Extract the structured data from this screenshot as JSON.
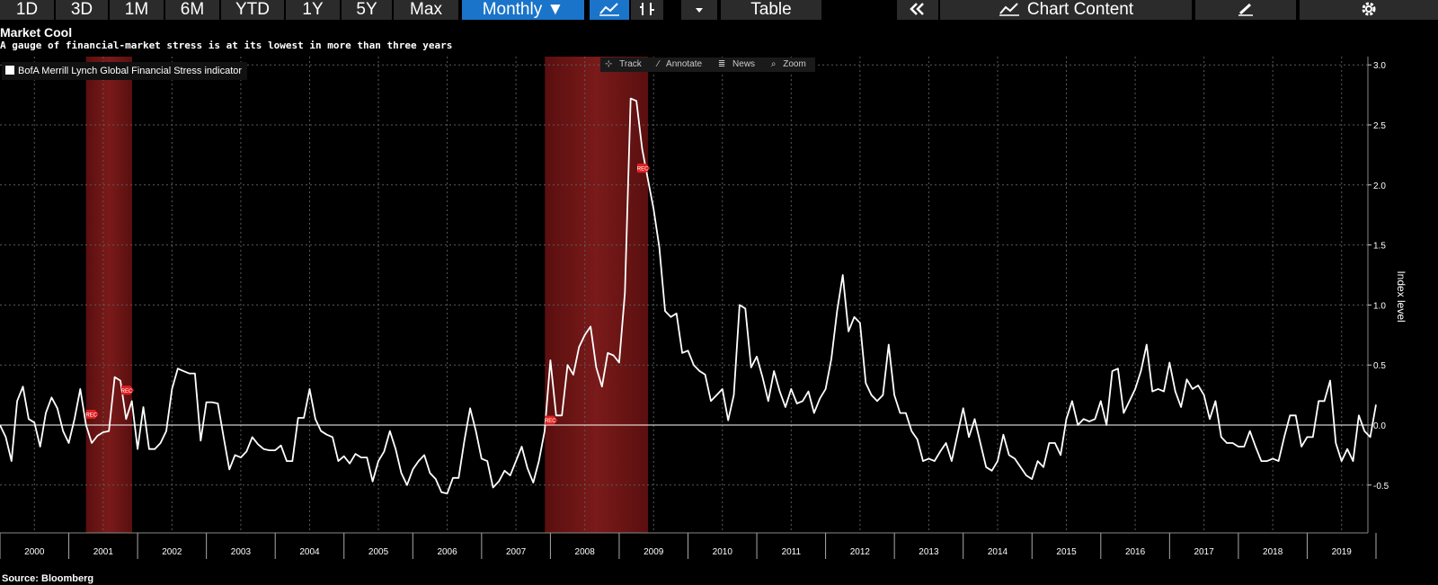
{
  "toolbar": {
    "ranges": [
      "1D",
      "3D",
      "1M",
      "6M",
      "YTD",
      "1Y",
      "5Y",
      "Max"
    ],
    "frequency": "Monthly ▼",
    "table": "Table",
    "collapse_icon": "double-chevron-left-icon",
    "chart_content": "Chart Content",
    "edit_icon": "pencil-icon",
    "settings_icon": "gear-icon"
  },
  "tools": [
    "Track",
    "Annotate",
    "News",
    "Zoom"
  ],
  "colors": {
    "line": "#ffffff",
    "recession": "#6a1212",
    "accent": "#1a74c9",
    "grid": "#555555"
  },
  "chart_data": {
    "type": "line",
    "title": "Market Cool",
    "subtitle": "A gauge of financial-market stress is at its lowest in more than three years",
    "source": "Source: Bloomberg",
    "ylabel": "Index level",
    "legend": "BofA Merrill Lynch Global Financial Stress indicator",
    "legend_position": "top-left",
    "grid": true,
    "y_axis_side": "right",
    "ylim": [
      -0.9,
      3.05
    ],
    "yticks": [
      3.0,
      2.5,
      2.0,
      1.5,
      1.0,
      0.5,
      0.0,
      -0.5
    ],
    "ytick_labels": [
      "3.0",
      "2.5",
      "2.0",
      "1.5",
      "1.0",
      "0.5",
      "0.0",
      "-0.5"
    ],
    "x_start": 2000.0,
    "x_step": 0.0833333,
    "years": [
      "2000",
      "2001",
      "2002",
      "2003",
      "2004",
      "2005",
      "2006",
      "2007",
      "2008",
      "2009",
      "2010",
      "2011",
      "2012",
      "2013",
      "2014",
      "2015",
      "2016",
      "2017",
      "2018",
      "2019"
    ],
    "recessions": [
      [
        2001.25,
        2001.92
      ],
      [
        2007.92,
        2009.42
      ]
    ],
    "recession_label": "REC",
    "values": [
      0.0,
      -0.1,
      -0.3,
      0.2,
      0.32,
      0.05,
      0.02,
      -0.18,
      0.1,
      0.23,
      0.14,
      -0.05,
      -0.15,
      0.05,
      0.3,
      0.0,
      -0.15,
      -0.09,
      -0.06,
      -0.05,
      0.4,
      0.37,
      0.05,
      0.2,
      -0.2,
      0.15,
      -0.2,
      -0.2,
      -0.15,
      -0.05,
      0.3,
      0.47,
      0.45,
      0.43,
      0.43,
      -0.13,
      0.19,
      0.19,
      0.18,
      -0.1,
      -0.37,
      -0.25,
      -0.27,
      -0.22,
      -0.1,
      -0.16,
      -0.2,
      -0.21,
      -0.21,
      -0.17,
      -0.3,
      -0.3,
      0.06,
      0.06,
      0.3,
      0.05,
      -0.05,
      -0.08,
      -0.1,
      -0.3,
      -0.26,
      -0.32,
      -0.24,
      -0.27,
      -0.27,
      -0.47,
      -0.3,
      -0.22,
      -0.05,
      -0.2,
      -0.4,
      -0.5,
      -0.37,
      -0.3,
      -0.25,
      -0.4,
      -0.45,
      -0.56,
      -0.57,
      -0.44,
      -0.44,
      -0.13,
      0.14,
      -0.05,
      -0.28,
      -0.3,
      -0.52,
      -0.47,
      -0.38,
      -0.42,
      -0.3,
      -0.18,
      -0.36,
      -0.48,
      -0.3,
      -0.05,
      0.54,
      0.08,
      0.08,
      0.5,
      0.42,
      0.65,
      0.75,
      0.82,
      0.48,
      0.32,
      0.6,
      0.58,
      0.52,
      1.1,
      2.72,
      2.7,
      2.3,
      2.05,
      1.8,
      1.48,
      0.95,
      0.9,
      0.93,
      0.6,
      0.62,
      0.5,
      0.45,
      0.42,
      0.2,
      0.25,
      0.3,
      0.04,
      0.25,
      1.0,
      0.97,
      0.48,
      0.57,
      0.4,
      0.2,
      0.45,
      0.28,
      0.15,
      0.3,
      0.18,
      0.2,
      0.28,
      0.1,
      0.22,
      0.3,
      0.55,
      0.95,
      1.25,
      0.78,
      0.9,
      0.85,
      0.35,
      0.25,
      0.2,
      0.25,
      0.67,
      0.25,
      0.1,
      0.1,
      -0.05,
      -0.12,
      -0.3,
      -0.28,
      -0.3,
      -0.22,
      -0.15,
      -0.3,
      -0.08,
      0.14,
      -0.1,
      0.05,
      -0.15,
      -0.35,
      -0.38,
      -0.3,
      -0.08,
      -0.25,
      -0.28,
      -0.35,
      -0.42,
      -0.45,
      -0.3,
      -0.35,
      -0.15,
      -0.15,
      -0.25,
      0.05,
      0.2,
      0.0,
      0.05,
      0.03,
      0.05,
      0.2,
      0.0,
      0.45,
      0.47,
      0.1,
      0.2,
      0.3,
      0.45,
      0.67,
      0.28,
      0.3,
      0.28,
      0.52,
      0.28,
      0.15,
      0.38,
      0.3,
      0.33,
      0.25,
      0.05,
      0.2,
      -0.1,
      -0.15,
      -0.15,
      -0.18,
      -0.18,
      -0.05,
      -0.18,
      -0.3,
      -0.3,
      -0.28,
      -0.3,
      -0.1,
      0.08,
      0.08,
      -0.18,
      -0.1,
      -0.1,
      0.2,
      0.2,
      0.37,
      -0.15,
      -0.3,
      -0.2,
      -0.3,
      0.08,
      -0.05,
      -0.1,
      0.17
    ]
  }
}
